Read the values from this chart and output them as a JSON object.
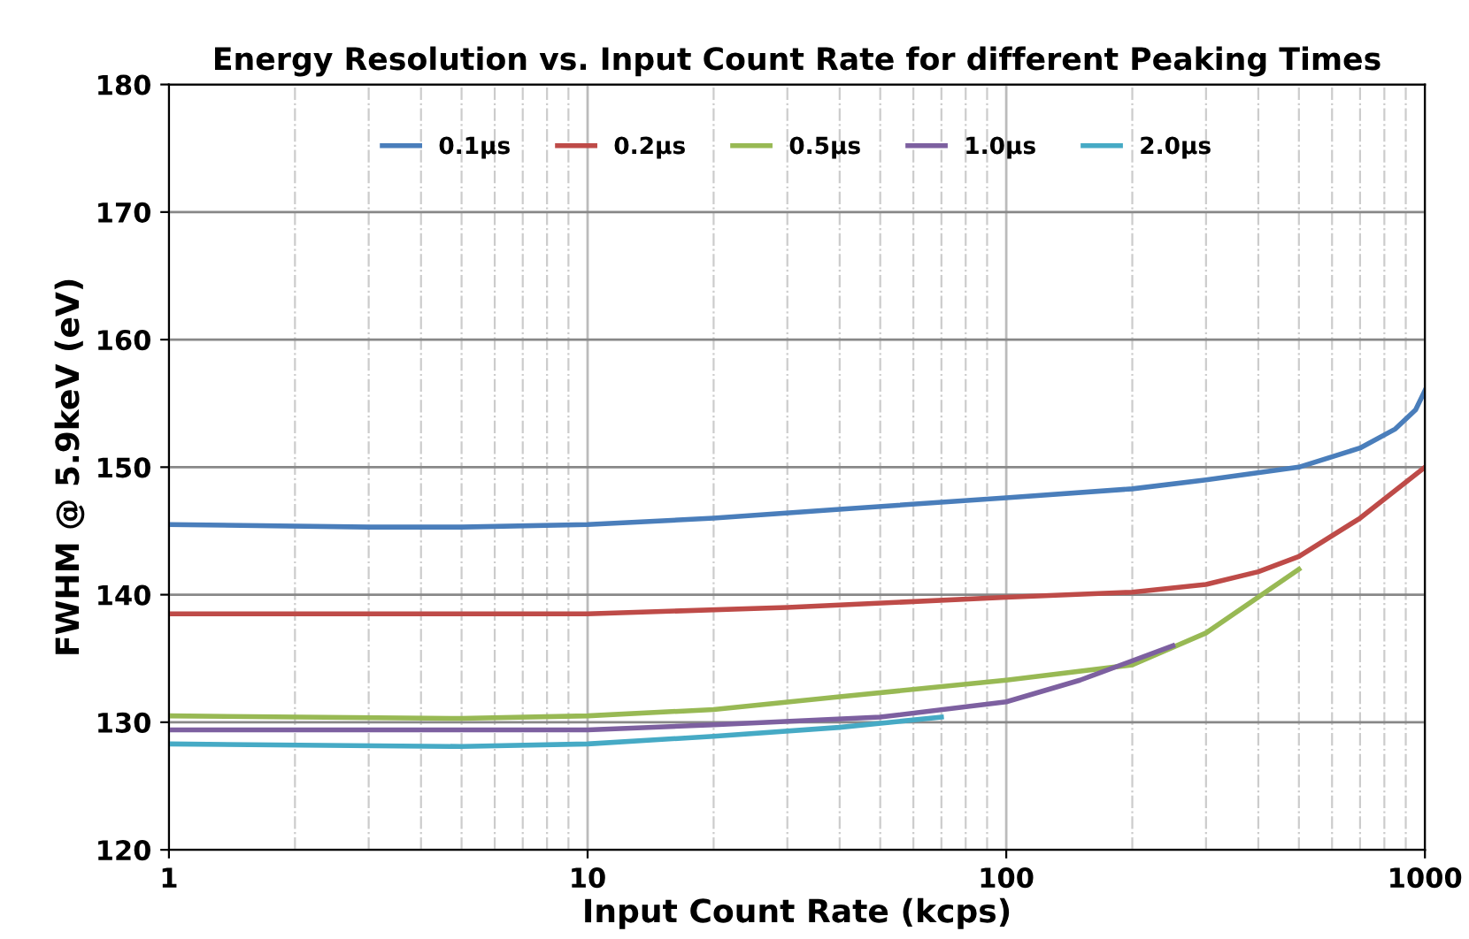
{
  "chart_data": {
    "type": "line",
    "title": "Energy Resolution vs. Input Count Rate for different Peaking Times",
    "xlabel": "Input Count Rate (kcps)",
    "ylabel": "FWHM @ 5.9keV (eV)",
    "log": "x",
    "xlim": [
      1,
      1000
    ],
    "xticks": [
      1,
      10,
      100,
      1000
    ],
    "ylim": [
      120,
      180
    ],
    "yticks": [
      120,
      130,
      140,
      150,
      160,
      170,
      180
    ],
    "grid": true,
    "legend": "top",
    "marker": "none",
    "line_style": "solid",
    "series": [
      {
        "name": "0.1µs",
        "color": "#4a7ebb",
        "x": [
          1,
          3,
          5,
          10,
          20,
          40,
          100,
          200,
          300,
          500,
          700,
          850,
          950,
          1000
        ],
        "values": [
          145.5,
          145.3,
          145.3,
          145.5,
          146,
          146.7,
          147.6,
          148.3,
          149,
          150,
          151.5,
          153,
          154.5,
          156
        ]
      },
      {
        "name": "0.2µs",
        "color": "#be4b48",
        "x": [
          1,
          10,
          30,
          100,
          200,
          300,
          400,
          500,
          700,
          1000
        ],
        "values": [
          138.5,
          138.5,
          139,
          139.8,
          140.2,
          140.8,
          141.8,
          143,
          146,
          150
        ]
      },
      {
        "name": "0.5µs",
        "color": "#98b954",
        "x": [
          1,
          5,
          10,
          20,
          40,
          100,
          200,
          300,
          500
        ],
        "values": [
          130.5,
          130.3,
          130.5,
          131,
          132,
          133.3,
          134.5,
          137,
          142
        ]
      },
      {
        "name": "1.0µs",
        "color": "#7d60a0",
        "x": [
          1,
          10,
          20,
          50,
          100,
          150,
          250
        ],
        "values": [
          129.4,
          129.4,
          129.8,
          130.4,
          131.6,
          133.3,
          136
        ]
      },
      {
        "name": "2.0µs",
        "color": "#46aac5",
        "x": [
          1,
          5,
          10,
          20,
          40,
          70
        ],
        "values": [
          128.3,
          128.1,
          128.3,
          128.9,
          129.6,
          130.4
        ]
      }
    ]
  }
}
